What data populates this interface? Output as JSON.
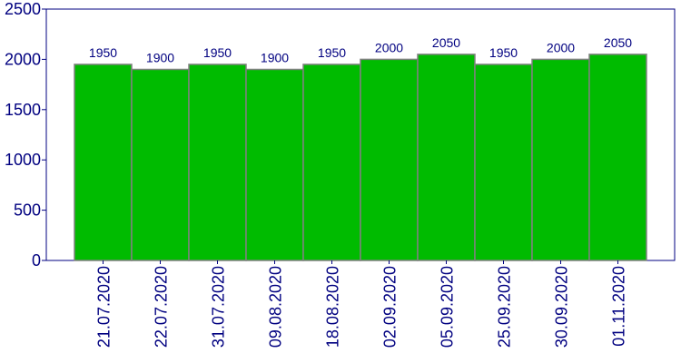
{
  "chart_data": {
    "type": "bar",
    "categories": [
      "21.07.2020",
      "22.07.2020",
      "31.07.2020",
      "09.08.2020",
      "18.08.2020",
      "02.09.2020",
      "05.09.2020",
      "25.09.2020",
      "30.09.2020",
      "01.11.2020"
    ],
    "values": [
      1950,
      1900,
      1950,
      1900,
      1950,
      2000,
      2050,
      1950,
      2000,
      2050
    ],
    "color": "#00bb00",
    "ylim": [
      0,
      2500
    ],
    "yticks": [
      0,
      500,
      1000,
      1500,
      2000,
      2500
    ]
  }
}
